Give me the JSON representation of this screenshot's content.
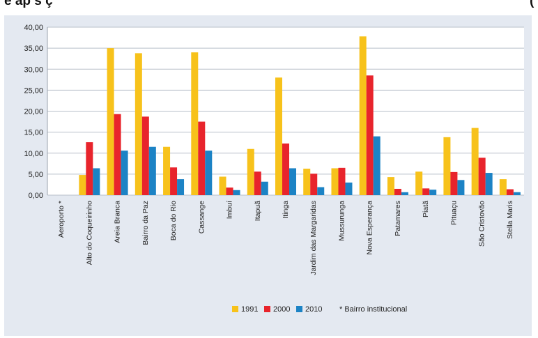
{
  "caption": {
    "left_text": "e ap s ç",
    "right_text": "("
  },
  "colors": {
    "panel_background": "#e4e9f1",
    "plot_background": "#ffffff",
    "grid": "#b8bfc9",
    "series_1991": "#f7c21b",
    "series_2000": "#e8242c",
    "series_2010": "#1c83c5"
  },
  "chart_data": {
    "type": "bar",
    "title": "",
    "xlabel": "",
    "ylabel": "",
    "ylim": [
      0,
      40
    ],
    "yticks": [
      "0,00",
      "5,00",
      "10,00",
      "15,00",
      "20,00",
      "25,00",
      "30,00",
      "35,00",
      "40,00"
    ],
    "grid": true,
    "legend_position": "bottom",
    "categories": [
      "Aeroporto *",
      "Alto do Coqueirinho",
      "Areia Branca",
      "Bairro da Paz",
      "Boca do Rio",
      "Cassange",
      "Imbuí",
      "Itapuã",
      "Itinga",
      "Jardim das Margaridas",
      "Mussurunga",
      "Nova Esperança",
      "Patamares",
      "Piatã",
      "Pituaçu",
      "São Cristovão",
      "Stella Maris"
    ],
    "series": [
      {
        "name": "1991",
        "values": [
          0,
          4.8,
          35.0,
          33.8,
          11.5,
          34.0,
          4.4,
          11.0,
          28.0,
          6.3,
          6.4,
          37.8,
          4.3,
          5.6,
          13.8,
          16.0,
          3.8
        ]
      },
      {
        "name": "2000",
        "values": [
          0,
          12.6,
          19.3,
          18.7,
          6.6,
          17.5,
          1.8,
          5.6,
          12.3,
          5.1,
          6.5,
          28.5,
          1.5,
          1.6,
          5.5,
          8.9,
          1.4
        ]
      },
      {
        "name": "2010",
        "values": [
          0,
          6.4,
          10.6,
          11.5,
          3.8,
          10.6,
          1.2,
          3.2,
          6.4,
          1.9,
          3.0,
          14.0,
          0.7,
          1.3,
          3.6,
          5.3,
          0.7
        ]
      }
    ],
    "note": "* Bairro institucional"
  }
}
